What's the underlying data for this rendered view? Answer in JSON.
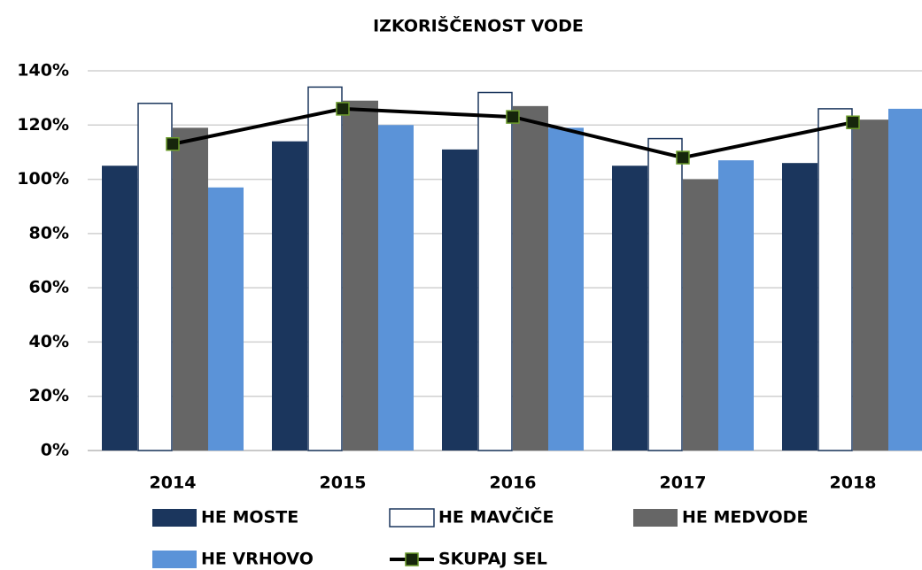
{
  "chart_data": {
    "type": "bar",
    "title": "IZKORIŠČENOST VODE",
    "categories": [
      "2014",
      "2015",
      "2016",
      "2017",
      "2018"
    ],
    "series": [
      {
        "name": "HE MOSTE",
        "type": "bar",
        "color": "#1b365d",
        "values": [
          105,
          114,
          111,
          105,
          106
        ]
      },
      {
        "name": "HE MAVČIČE",
        "type": "bar",
        "color": "#ffffff",
        "edge_color": "#1b365d",
        "values": [
          128,
          134,
          132,
          115,
          126
        ]
      },
      {
        "name": "HE MEDVODE",
        "type": "bar",
        "color": "#666666",
        "values": [
          119,
          129,
          127,
          100,
          122
        ]
      },
      {
        "name": "HE VRHOVO",
        "type": "bar",
        "color": "#5b93d8",
        "values": [
          97,
          120,
          119,
          107,
          126
        ]
      },
      {
        "name": "SKUPAJ SEL",
        "type": "line",
        "color": "#000000",
        "marker_color": "#16260c",
        "marker_edge_color": "#6a9a2a",
        "values": [
          113,
          126,
          123,
          108,
          121
        ]
      }
    ],
    "ylim": [
      0,
      140
    ],
    "yticks": [
      {
        "value": 0,
        "label": "0%"
      },
      {
        "value": 20,
        "label": "20%"
      },
      {
        "value": 40,
        "label": "40%"
      },
      {
        "value": 60,
        "label": "60%"
      },
      {
        "value": 80,
        "label": "80%"
      },
      {
        "value": 100,
        "label": "100%"
      },
      {
        "value": 120,
        "label": "120%"
      },
      {
        "value": 140,
        "label": "140%"
      }
    ],
    "grid": true,
    "legend": "bottom"
  }
}
